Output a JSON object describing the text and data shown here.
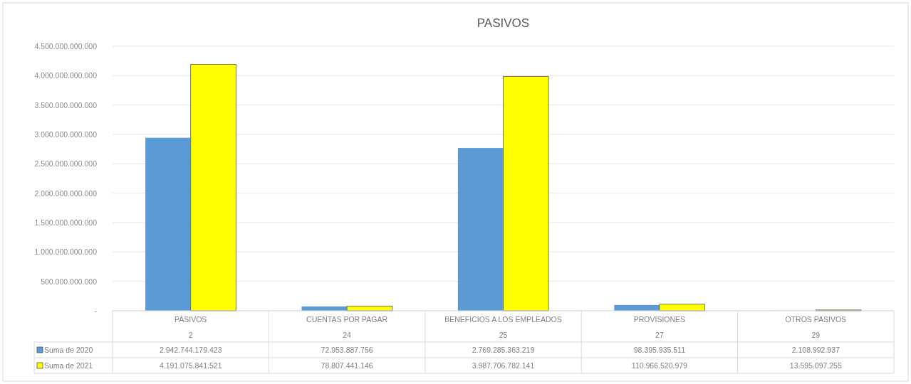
{
  "chart_data": {
    "type": "bar",
    "title": "PASIVOS",
    "categories": [
      "PASIVOS\n2",
      "CUENTAS POR PAGAR\n24",
      "BENEFICIOS A LOS EMPLEADOS\n25",
      "PROVISIONES\n27",
      "OTROS PASIVOS\n29"
    ],
    "series": [
      {
        "name": "Suma de 2020",
        "color": "#5b9bd5",
        "values": [
          2942744179423,
          72953887756,
          2769285363219,
          98395935511,
          2108992937
        ],
        "value_labels": [
          "2.942.744.179.423",
          "72.953.887.756",
          "2.769.285.363.219",
          "98.395.935.511",
          "2.108.992.937"
        ]
      },
      {
        "name": "Suma de 2021",
        "color": "#ffff00",
        "values": [
          4191075841521,
          78807441146,
          3987706782141,
          110966520979,
          13595097255
        ],
        "value_labels": [
          "4.191.075.841.521",
          "78.807.441.146",
          "3.987.706.782.141",
          "110.966.520.979",
          "13.595.097.255"
        ]
      }
    ],
    "ylim": [
      0,
      4500000000000
    ],
    "yticks": [
      {
        "value": 0,
        "label": "-"
      },
      {
        "value": 500000000000,
        "label": "500.000.000.000"
      },
      {
        "value": 1000000000000,
        "label": "1.000.000.000.000"
      },
      {
        "value": 1500000000000,
        "label": "1.500.000.000.000"
      },
      {
        "value": 2000000000000,
        "label": "2.000.000.000.000"
      },
      {
        "value": 2500000000000,
        "label": "2.500.000.000.000"
      },
      {
        "value": 3000000000000,
        "label": "3.000.000.000.000"
      },
      {
        "value": 3500000000000,
        "label": "3.500.000.000.000"
      },
      {
        "value": 4000000000000,
        "label": "4.000.000.000.000"
      },
      {
        "value": 4500000000000,
        "label": "4.500.000.000.000"
      }
    ],
    "grid": "y",
    "legend": "bottom left"
  }
}
